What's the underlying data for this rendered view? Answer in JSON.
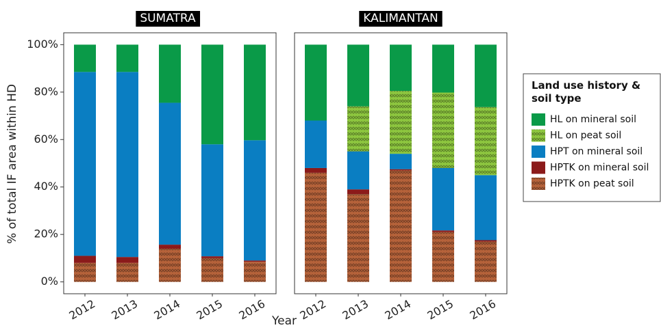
{
  "y_label": "% of total IF area within HD",
  "x_label": "Year",
  "legend_title": "Land use history & soil type",
  "chart_data": [
    {
      "type": "stacked_bar",
      "title": "SUMATRA",
      "categories": [
        "2012",
        "2013",
        "2014",
        "2015",
        "2016"
      ],
      "ylim": [
        -5,
        105
      ],
      "yticks": [
        {
          "value": 0,
          "label": "0%"
        },
        {
          "value": 20,
          "label": "20%"
        },
        {
          "value": 40,
          "label": "40%"
        },
        {
          "value": 60,
          "label": "60%"
        },
        {
          "value": 80,
          "label": "80%"
        },
        {
          "value": 100,
          "label": "100%"
        }
      ],
      "series": [
        {
          "name": "HL on mineral soil",
          "color": "#0a9a48",
          "hatch": false,
          "values": [
            11.5,
            11.5,
            24.5,
            42,
            40.3
          ]
        },
        {
          "name": "HPT on mineral soil",
          "color": "#0a7ec2",
          "hatch": false,
          "values": [
            77.5,
            78,
            59.8,
            47.2,
            50.7
          ]
        },
        {
          "name": "HPTK on mineral soil",
          "color": "#8b1a1a",
          "hatch": false,
          "values": [
            3,
            2.5,
            1.7,
            0.8,
            0.5
          ]
        },
        {
          "name": "HPTK on peat soil",
          "color": "#b5623a",
          "hatch": true,
          "values": [
            8,
            8,
            14,
            10,
            8.5
          ]
        }
      ]
    },
    {
      "type": "stacked_bar",
      "title": "KALIMANTAN",
      "categories": [
        "2012",
        "2013",
        "2014",
        "2015",
        "2016"
      ],
      "ylim": [
        -5,
        105
      ],
      "series": [
        {
          "name": "HL on mineral soil",
          "color": "#0a9a48",
          "hatch": false,
          "values": [
            32,
            26,
            19.5,
            20.2,
            26.3
          ]
        },
        {
          "name": "HL on peat soil",
          "color": "#8dc63f",
          "hatch": true,
          "values": [
            0,
            19,
            26.5,
            31.8,
            28.7
          ]
        },
        {
          "name": "HPT on mineral soil",
          "color": "#0a7ec2",
          "hatch": false,
          "values": [
            20,
            16,
            6.5,
            26.3,
            27.4
          ]
        },
        {
          "name": "HPTK on mineral soil",
          "color": "#8b1a1a",
          "hatch": false,
          "values": [
            2,
            2,
            0.5,
            0.7,
            0.6
          ]
        },
        {
          "name": "HPTK on peat soil",
          "color": "#b5623a",
          "hatch": true,
          "values": [
            46,
            37,
            47,
            21,
            17
          ]
        }
      ]
    }
  ]
}
